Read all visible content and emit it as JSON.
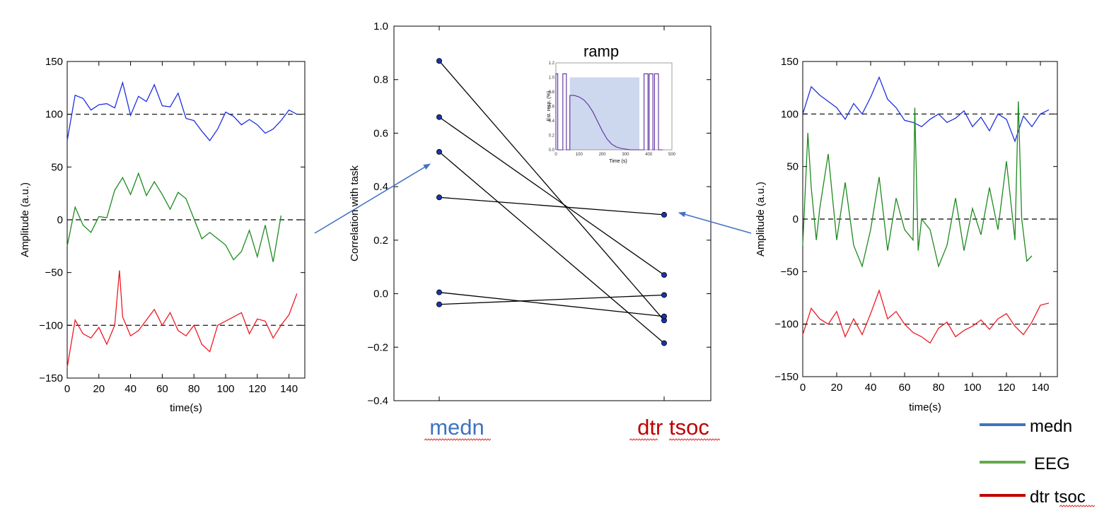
{
  "chart_data": [
    {
      "id": "left",
      "type": "line",
      "ylabel": "Amplitude (a.u.)",
      "xlabel": "time(s)",
      "xlim": [
        0,
        150
      ],
      "ylim": [
        -150,
        150
      ],
      "xticks": [
        "0",
        "20",
        "40",
        "60",
        "80",
        "100",
        "120",
        "140"
      ],
      "yticks": [
        "150",
        "100",
        "50",
        "0",
        "−50",
        "−100",
        "−150"
      ],
      "reference_lines": [
        100,
        0,
        -100
      ],
      "series": [
        {
          "name": "medn",
          "color": "#1f2fe0",
          "x": [
            0,
            5,
            10,
            15,
            20,
            25,
            30,
            35,
            40,
            45,
            50,
            55,
            60,
            65,
            70,
            75,
            80,
            85,
            90,
            95,
            100,
            105,
            110,
            115,
            120,
            125,
            130,
            135,
            140,
            145
          ],
          "values": [
            75,
            118,
            115,
            104,
            109,
            110,
            106,
            130,
            99,
            117,
            112,
            128,
            108,
            107,
            120,
            96,
            94,
            84,
            75,
            86,
            102,
            98,
            90,
            95,
            90,
            82,
            86,
            94,
            104,
            100
          ]
        },
        {
          "name": "EEG",
          "color": "#1e8a1e",
          "x": [
            0,
            5,
            10,
            15,
            20,
            25,
            30,
            35,
            40,
            45,
            50,
            55,
            60,
            65,
            70,
            75,
            80,
            85,
            90,
            95,
            100,
            105,
            110,
            115,
            120,
            125,
            130,
            135
          ],
          "values": [
            -25,
            12,
            -5,
            -12,
            3,
            2,
            28,
            40,
            24,
            44,
            23,
            36,
            24,
            10,
            26,
            20,
            1,
            -18,
            -12,
            -18,
            -24,
            -38,
            -30,
            -10,
            -35,
            -5,
            -40,
            4
          ]
        },
        {
          "name": "dtr tsoc",
          "color": "#ec1c24",
          "x": [
            0,
            5,
            10,
            15,
            20,
            25,
            30,
            33,
            35,
            40,
            45,
            50,
            55,
            60,
            65,
            70,
            75,
            80,
            85,
            90,
            95,
            100,
            105,
            110,
            115,
            120,
            125,
            130,
            135,
            140,
            145
          ],
          "values": [
            -140,
            -95,
            -108,
            -112,
            -102,
            -118,
            -100,
            -48,
            -92,
            -110,
            -105,
            -95,
            -85,
            -100,
            -88,
            -105,
            -110,
            -100,
            -118,
            -125,
            -100,
            -96,
            -92,
            -88,
            -108,
            -94,
            -96,
            -112,
            -100,
            -90,
            -70
          ]
        }
      ]
    },
    {
      "id": "center",
      "type": "line",
      "ylabel": "Correlation with task",
      "xlabel": "",
      "categories": [
        "medn",
        "dtr tsoc"
      ],
      "category_colors": [
        "#3e74c0",
        "#c00000"
      ],
      "ylim": [
        -0.4,
        1.0
      ],
      "yticks": [
        "1.0",
        "0.8",
        "0.6",
        "0.4",
        "0.2",
        "0.0",
        "−0.2",
        "−0.4"
      ],
      "series": [
        {
          "name": "pair-1",
          "values": [
            0.87,
            -0.1
          ]
        },
        {
          "name": "pair-2",
          "values": [
            0.66,
            0.07
          ]
        },
        {
          "name": "pair-3",
          "values": [
            0.53,
            -0.185
          ]
        },
        {
          "name": "pair-4",
          "values": [
            0.36,
            0.295
          ]
        },
        {
          "name": "pair-5",
          "values": [
            0.005,
            -0.085
          ]
        },
        {
          "name": "pair-6",
          "values": [
            -0.04,
            -0.005
          ]
        }
      ]
    },
    {
      "id": "inset",
      "type": "line",
      "title": "ramp",
      "xlabel": "Time (s)",
      "ylabel": "Est. resp. (%)",
      "xlim": [
        0,
        500
      ],
      "ylim": [
        0,
        1.2
      ],
      "xticks": [
        "0",
        "100",
        "200",
        "300",
        "400",
        "500"
      ],
      "yticks": [
        "1.2",
        "1.0",
        "0.8",
        "0.6",
        "0.4",
        "0.2",
        "0.0"
      ],
      "shaded_region": [
        60,
        360
      ],
      "series": [
        {
          "name": "response",
          "color": "#5b2d9c",
          "x": [
            0,
            0,
            8,
            8,
            30,
            30,
            45,
            45,
            60,
            60,
            62,
            62,
            80,
            100,
            120,
            140,
            160,
            180,
            200,
            220,
            240,
            260,
            280,
            300,
            320,
            340,
            360,
            380,
            380,
            397,
            397,
            402,
            402,
            418,
            418,
            425,
            425,
            442,
            442,
            460
          ],
          "values": [
            0,
            1.05,
            1.05,
            0,
            0,
            1.05,
            1.05,
            0,
            0,
            0.75,
            0.75,
            0.75,
            0.75,
            0.73,
            0.69,
            0.62,
            0.52,
            0.39,
            0.26,
            0.15,
            0.08,
            0.04,
            0.02,
            0.01,
            0,
            0,
            0,
            0,
            1.05,
            1.05,
            0,
            0,
            1.05,
            1.05,
            0,
            0,
            1.05,
            1.05,
            0,
            0
          ]
        }
      ]
    },
    {
      "id": "right",
      "type": "line",
      "ylabel": "Amplitude (a.u.)",
      "xlabel": "time(s)",
      "xlim": [
        0,
        150
      ],
      "ylim": [
        -150,
        150
      ],
      "xticks": [
        "0",
        "20",
        "40",
        "60",
        "80",
        "100",
        "120",
        "140"
      ],
      "yticks": [
        "150",
        "100",
        "50",
        "0",
        "−50",
        "−100",
        "−150"
      ],
      "reference_lines": [
        100,
        0,
        -100
      ],
      "series": [
        {
          "name": "medn",
          "color": "#1f2fe0",
          "x": [
            0,
            5,
            10,
            15,
            20,
            25,
            30,
            35,
            40,
            45,
            50,
            55,
            60,
            65,
            70,
            75,
            80,
            85,
            90,
            95,
            100,
            105,
            110,
            115,
            120,
            125,
            130,
            135,
            140,
            145
          ],
          "values": [
            100,
            126,
            118,
            112,
            106,
            95,
            110,
            100,
            116,
            135,
            114,
            106,
            94,
            92,
            88,
            95,
            100,
            92,
            96,
            103,
            88,
            97,
            84,
            100,
            95,
            74,
            98,
            88,
            100,
            104
          ]
        },
        {
          "name": "EEG",
          "color": "#1e8a1e",
          "x": [
            0,
            3,
            5,
            8,
            10,
            15,
            20,
            25,
            30,
            35,
            40,
            45,
            50,
            55,
            60,
            65,
            66,
            68,
            70,
            75,
            80,
            85,
            90,
            95,
            100,
            105,
            110,
            115,
            120,
            125,
            127,
            129,
            132,
            135
          ],
          "values": [
            -25,
            82,
            30,
            -20,
            10,
            62,
            -20,
            35,
            -25,
            -45,
            -10,
            40,
            -30,
            20,
            -10,
            -20,
            106,
            -30,
            0,
            -10,
            -45,
            -25,
            20,
            -30,
            10,
            -15,
            30,
            -10,
            55,
            -20,
            112,
            0,
            -40,
            -35
          ]
        },
        {
          "name": "dtr tsoc",
          "color": "#ec1c24",
          "x": [
            0,
            5,
            10,
            15,
            20,
            25,
            30,
            35,
            40,
            45,
            50,
            55,
            60,
            65,
            70,
            75,
            80,
            85,
            90,
            95,
            100,
            105,
            110,
            115,
            120,
            125,
            130,
            135,
            140,
            145
          ],
          "values": [
            -110,
            -85,
            -95,
            -100,
            -88,
            -112,
            -95,
            -110,
            -90,
            -68,
            -95,
            -88,
            -100,
            -108,
            -112,
            -118,
            -104,
            -98,
            -112,
            -106,
            -102,
            -96,
            -105,
            -95,
            -90,
            -102,
            -110,
            -98,
            -82,
            -80
          ]
        }
      ]
    }
  ],
  "category_labels": [
    "medn",
    "dtr tsoc"
  ],
  "legend": {
    "entries": [
      {
        "label": "medn",
        "color": "#3e74c0"
      },
      {
        "label": "EEG",
        "color": "#66a84c"
      },
      {
        "label": "dtr tsoc",
        "color": "#c00000"
      }
    ]
  },
  "colors": {
    "arrow": "#4472c4",
    "squiggle": "#e03030",
    "connector": "#000000",
    "marker": "#1a33aa",
    "shade": "#cdd8ef"
  }
}
